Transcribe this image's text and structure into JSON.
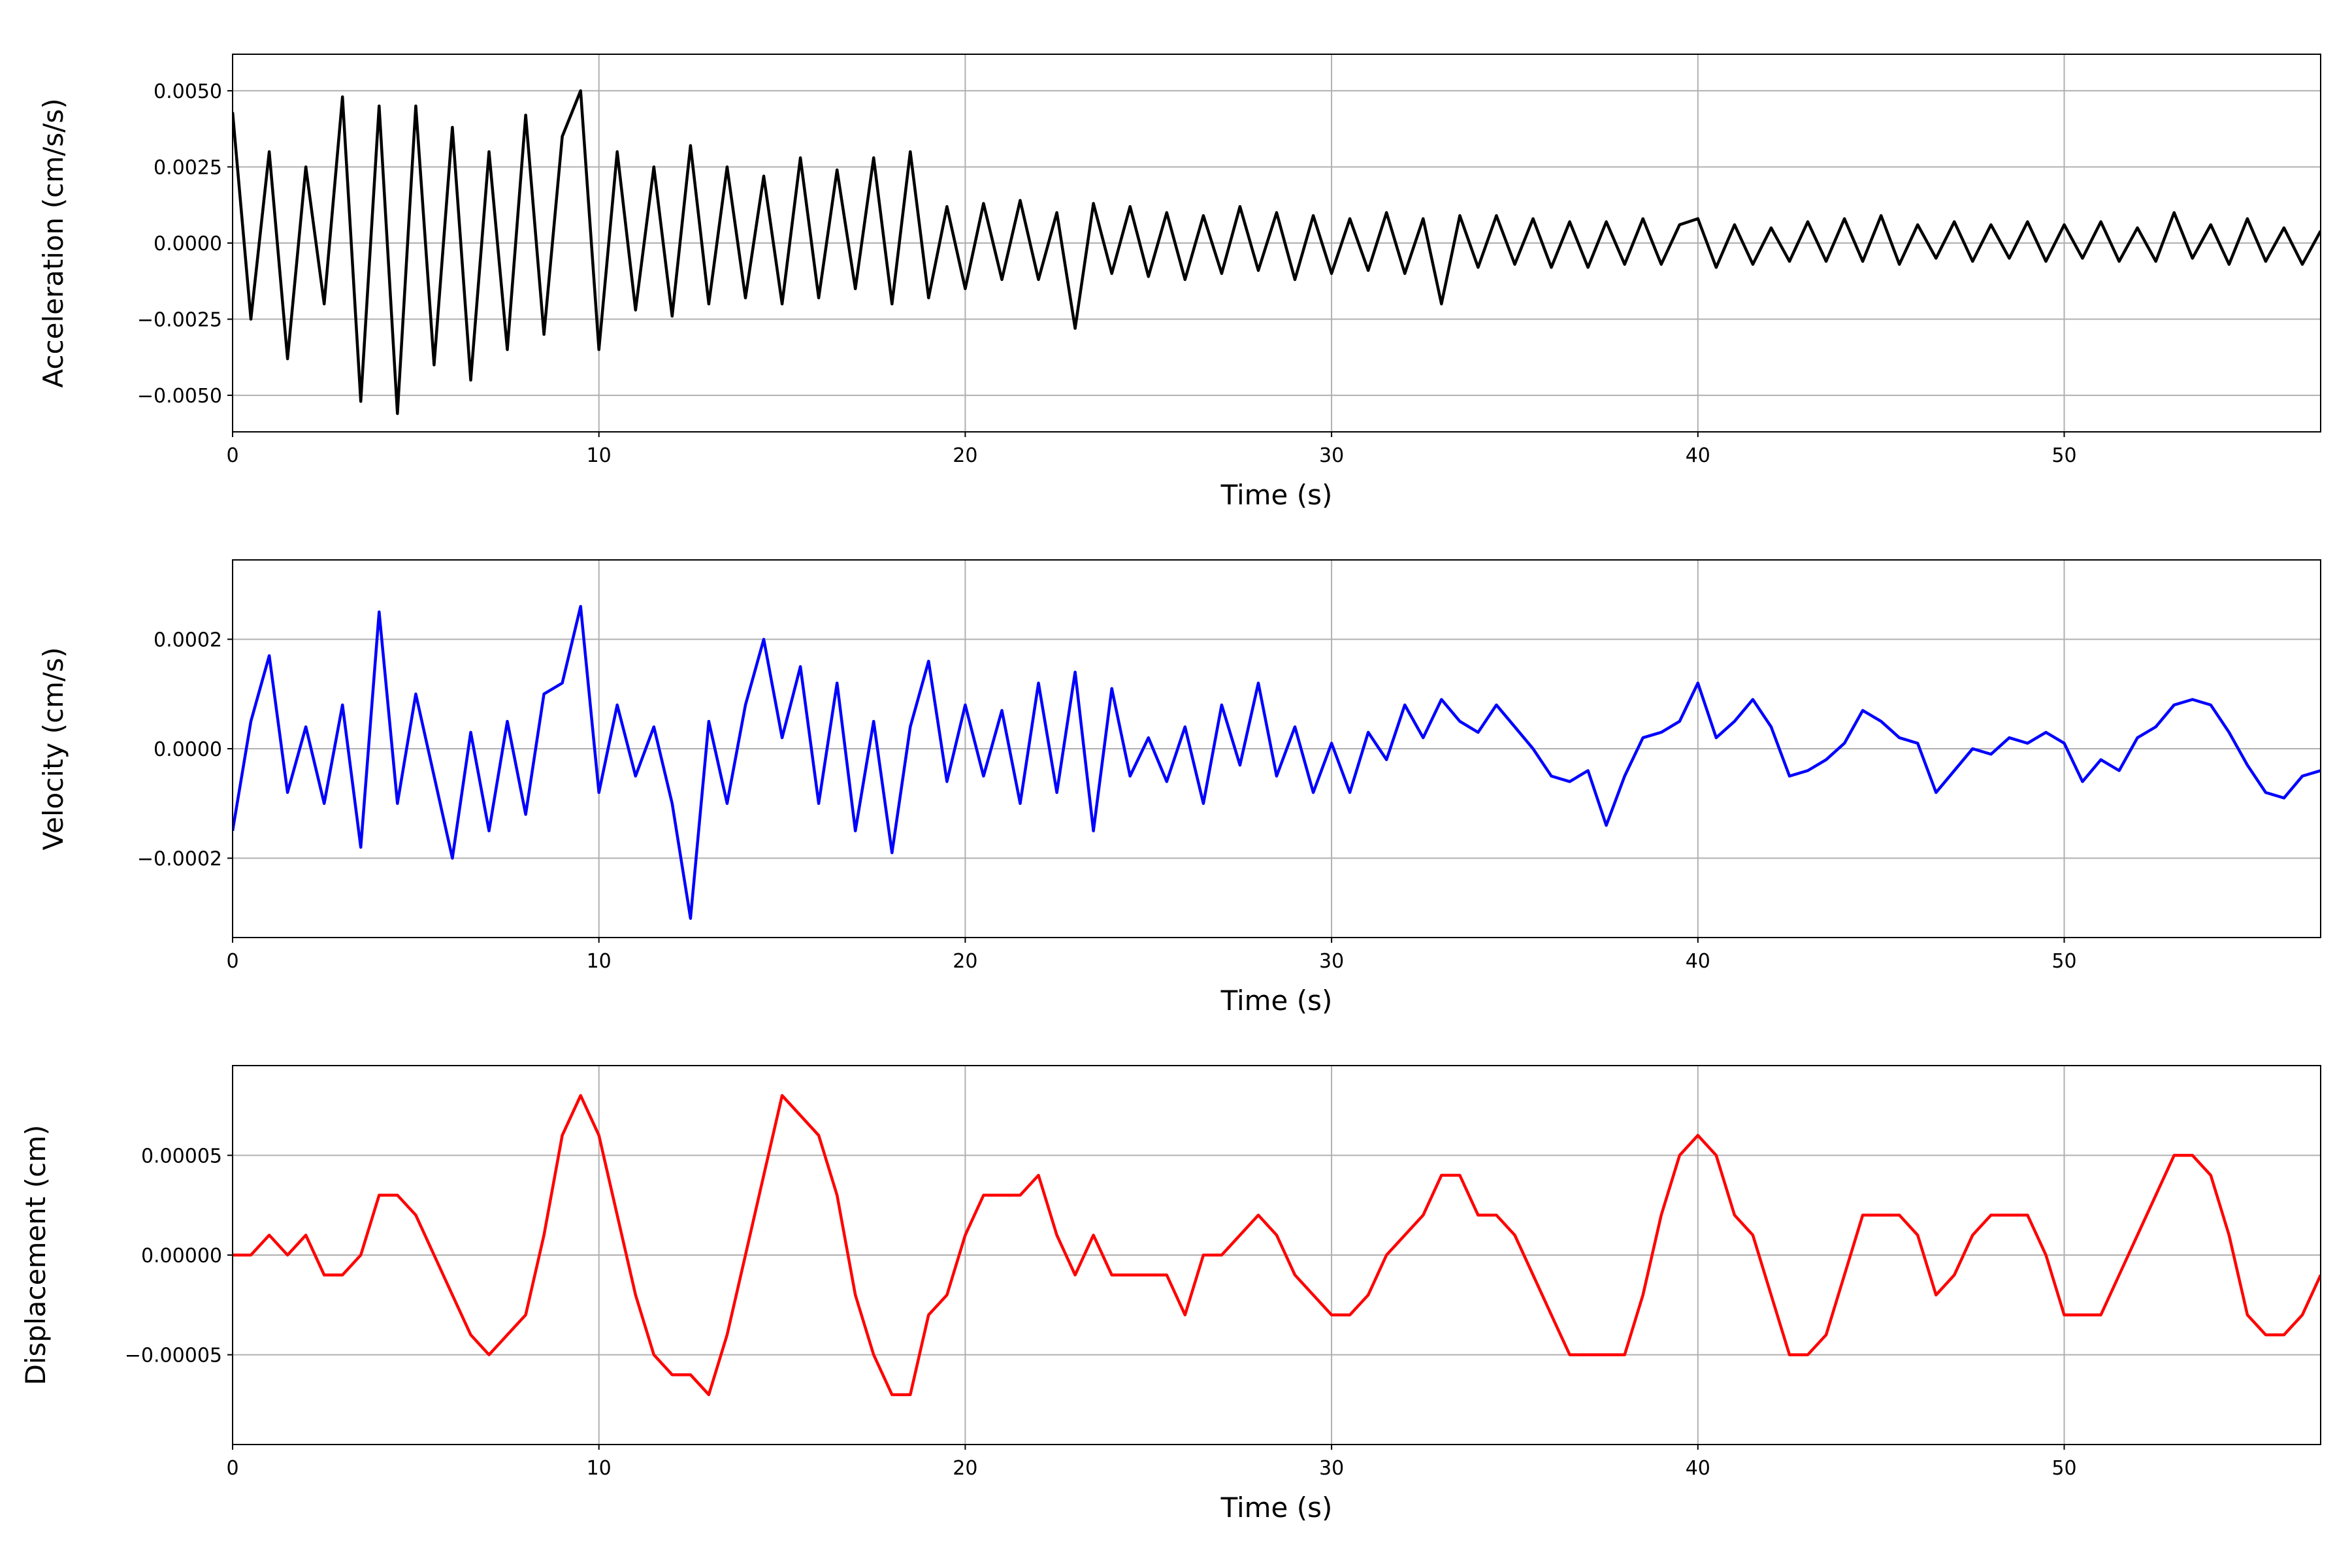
{
  "chart_data": [
    {
      "type": "line",
      "xlabel": "Time (s)",
      "ylabel": "Acceleration (cm/s/s)",
      "color": "#000000",
      "grid": true,
      "xlim": [
        0,
        57
      ],
      "xticks": [
        0,
        10,
        20,
        30,
        40,
        50
      ],
      "ylim": [
        -0.0062,
        0.0062
      ],
      "yticks": [
        {
          "value": -0.005,
          "label": "−0.0050"
        },
        {
          "value": -0.0025,
          "label": "−0.0025"
        },
        {
          "value": 0,
          "label": "0.0000"
        },
        {
          "value": 0.0025,
          "label": "0.0025"
        },
        {
          "value": 0.005,
          "label": "0.0050"
        }
      ],
      "x": [
        0,
        0.5,
        1,
        1.5,
        2,
        2.5,
        3,
        3.5,
        4,
        4.5,
        5,
        5.5,
        6,
        6.5,
        7,
        7.5,
        8,
        8.5,
        9,
        9.5,
        10,
        10.5,
        11,
        11.5,
        12,
        12.5,
        13,
        13.5,
        14,
        14.5,
        15,
        15.5,
        16,
        16.5,
        17,
        17.5,
        18,
        18.5,
        19,
        19.5,
        20,
        20.5,
        21,
        21.5,
        22,
        22.5,
        23,
        23.5,
        24,
        24.5,
        25,
        25.5,
        26,
        26.5,
        27,
        27.5,
        28,
        28.5,
        29,
        29.5,
        30,
        30.5,
        31,
        31.5,
        32,
        32.5,
        33,
        33.5,
        34,
        34.5,
        35,
        35.5,
        36,
        36.5,
        37,
        37.5,
        38,
        38.5,
        39,
        39.5,
        40,
        40.5,
        41,
        41.5,
        42,
        42.5,
        43,
        43.5,
        44,
        44.5,
        45,
        45.5,
        46,
        46.5,
        47,
        47.5,
        48,
        48.5,
        49,
        49.5,
        50,
        50.5,
        51,
        51.5,
        52,
        52.5,
        53,
        53.5,
        54,
        54.5,
        55,
        55.5,
        56,
        56.5,
        57
      ],
      "values": [
        0.0043,
        -0.0025,
        0.003,
        -0.0038,
        0.0025,
        -0.002,
        0.0048,
        -0.0052,
        0.0045,
        -0.0056,
        0.0045,
        -0.004,
        0.0038,
        -0.0045,
        0.003,
        -0.0035,
        0.0042,
        -0.003,
        0.0035,
        0.005,
        -0.0035,
        0.003,
        -0.0022,
        0.0025,
        -0.0024,
        0.0032,
        -0.002,
        0.0025,
        -0.0018,
        0.0022,
        -0.002,
        0.0028,
        -0.0018,
        0.0024,
        -0.0015,
        0.0028,
        -0.002,
        0.003,
        -0.0018,
        0.0012,
        -0.0015,
        0.0013,
        -0.0012,
        0.0014,
        -0.0012,
        0.001,
        -0.0028,
        0.0013,
        -0.001,
        0.0012,
        -0.0011,
        0.001,
        -0.0012,
        0.0009,
        -0.001,
        0.0012,
        -0.0009,
        0.001,
        -0.0012,
        0.0009,
        -0.001,
        0.0008,
        -0.0009,
        0.001,
        -0.001,
        0.0008,
        -0.002,
        0.0009,
        -0.0008,
        0.0009,
        -0.0007,
        0.0008,
        -0.0008,
        0.0007,
        -0.0008,
        0.0007,
        -0.0007,
        0.0008,
        -0.0007,
        0.0006,
        0.0008,
        -0.0008,
        0.0006,
        -0.0007,
        0.0005,
        -0.0006,
        0.0007,
        -0.0006,
        0.0008,
        -0.0006,
        0.0009,
        -0.0007,
        0.0006,
        -0.0005,
        0.0007,
        -0.0006,
        0.0006,
        -0.0005,
        0.0007,
        -0.0006,
        0.0006,
        -0.0005,
        0.0007,
        -0.0006,
        0.0005,
        -0.0006,
        0.001,
        -0.0005,
        0.0006,
        -0.0007,
        0.0008,
        -0.0006,
        0.0005,
        -0.0007,
        0.0004
      ]
    },
    {
      "type": "line",
      "xlabel": "Time (s)",
      "ylabel": "Velocity (cm/s)",
      "color": "#0000ff",
      "grid": true,
      "xlim": [
        0,
        57
      ],
      "xticks": [
        0,
        10,
        20,
        30,
        40,
        50
      ],
      "ylim": [
        -0.000345,
        0.000345
      ],
      "yticks": [
        {
          "value": -0.0002,
          "label": "−0.0002"
        },
        {
          "value": 0,
          "label": "0.0000"
        },
        {
          "value": 0.0002,
          "label": "0.0002"
        }
      ],
      "x": [
        0,
        0.5,
        1,
        1.5,
        2,
        2.5,
        3,
        3.5,
        4,
        4.5,
        5,
        5.5,
        6,
        6.5,
        7,
        7.5,
        8,
        8.5,
        9,
        9.5,
        10,
        10.5,
        11,
        11.5,
        12,
        12.5,
        13,
        13.5,
        14,
        14.5,
        15,
        15.5,
        16,
        16.5,
        17,
        17.5,
        18,
        18.5,
        19,
        19.5,
        20,
        20.5,
        21,
        21.5,
        22,
        22.5,
        23,
        23.5,
        24,
        24.5,
        25,
        25.5,
        26,
        26.5,
        27,
        27.5,
        28,
        28.5,
        29,
        29.5,
        30,
        30.5,
        31,
        31.5,
        32,
        32.5,
        33,
        33.5,
        34,
        34.5,
        35,
        35.5,
        36,
        36.5,
        37,
        37.5,
        38,
        38.5,
        39,
        39.5,
        40,
        40.5,
        41,
        41.5,
        42,
        42.5,
        43,
        43.5,
        44,
        44.5,
        45,
        45.5,
        46,
        46.5,
        47,
        47.5,
        48,
        48.5,
        49,
        49.5,
        50,
        50.5,
        51,
        51.5,
        52,
        52.5,
        53,
        53.5,
        54,
        54.5,
        55,
        55.5,
        56,
        56.5,
        57
      ],
      "values": [
        -0.00015,
        5e-05,
        0.00017,
        -8e-05,
        4e-05,
        -0.0001,
        8e-05,
        -0.00018,
        0.00025,
        -0.0001,
        0.0001,
        -5e-05,
        -0.0002,
        3e-05,
        -0.00015,
        5e-05,
        -0.00012,
        0.0001,
        0.00012,
        0.00026,
        -8e-05,
        8e-05,
        -5e-05,
        4e-05,
        -0.0001,
        -0.00031,
        5e-05,
        -0.0001,
        8e-05,
        0.0002,
        2e-05,
        0.00015,
        -0.0001,
        0.00012,
        -0.00015,
        5e-05,
        -0.00019,
        4e-05,
        0.00016,
        -6e-05,
        8e-05,
        -5e-05,
        7e-05,
        -0.0001,
        0.00012,
        -8e-05,
        0.00014,
        -0.00015,
        0.00011,
        -5e-05,
        2e-05,
        -6e-05,
        4e-05,
        -0.0001,
        8e-05,
        -3e-05,
        0.00012,
        -5e-05,
        4e-05,
        -8e-05,
        1e-05,
        -8e-05,
        3e-05,
        -2e-05,
        8e-05,
        2e-05,
        9e-05,
        5e-05,
        3e-05,
        8e-05,
        4e-05,
        0,
        -5e-05,
        -6e-05,
        -4e-05,
        -0.00014,
        -5e-05,
        2e-05,
        3e-05,
        5e-05,
        0.00012,
        2e-05,
        5e-05,
        9e-05,
        4e-05,
        -5e-05,
        -4e-05,
        -2e-05,
        1e-05,
        7e-05,
        5e-05,
        2e-05,
        1e-05,
        -8e-05,
        -4e-05,
        0,
        -1e-05,
        2e-05,
        1e-05,
        3e-05,
        1e-05,
        -6e-05,
        -2e-05,
        -4e-05,
        2e-05,
        4e-05,
        8e-05,
        9e-05,
        8e-05,
        3e-05,
        -3e-05,
        -8e-05,
        -9e-05,
        -5e-05,
        -4e-05
      ]
    },
    {
      "type": "line",
      "xlabel": "Time (s)",
      "ylabel": "Displacement (cm)",
      "color": "#ff0000",
      "grid": true,
      "xlim": [
        0,
        57
      ],
      "xticks": [
        0,
        10,
        20,
        30,
        40,
        50
      ],
      "ylim": [
        -9.5e-05,
        9.5e-05
      ],
      "yticks": [
        {
          "value": -5e-05,
          "label": "−0.00005"
        },
        {
          "value": 0,
          "label": "0.00000"
        },
        {
          "value": 5e-05,
          "label": "0.00005"
        }
      ],
      "x": [
        0,
        0.5,
        1,
        1.5,
        2,
        2.5,
        3,
        3.5,
        4,
        4.5,
        5,
        5.5,
        6,
        6.5,
        7,
        7.5,
        8,
        8.5,
        9,
        9.5,
        10,
        10.5,
        11,
        11.5,
        12,
        12.5,
        13,
        13.5,
        14,
        14.5,
        15,
        15.5,
        16,
        16.5,
        17,
        17.5,
        18,
        18.5,
        19,
        19.5,
        20,
        20.5,
        21,
        21.5,
        22,
        22.5,
        23,
        23.5,
        24,
        24.5,
        25,
        25.5,
        26,
        26.5,
        27,
        27.5,
        28,
        28.5,
        29,
        29.5,
        30,
        30.5,
        31,
        31.5,
        32,
        32.5,
        33,
        33.5,
        34,
        34.5,
        35,
        35.5,
        36,
        36.5,
        37,
        37.5,
        38,
        38.5,
        39,
        39.5,
        40,
        40.5,
        41,
        41.5,
        42,
        42.5,
        43,
        43.5,
        44,
        44.5,
        45,
        45.5,
        46,
        46.5,
        47,
        47.5,
        48,
        48.5,
        49,
        49.5,
        50,
        50.5,
        51,
        51.5,
        52,
        52.5,
        53,
        53.5,
        54,
        54.5,
        55,
        55.5,
        56,
        56.5,
        57
      ],
      "values": [
        0,
        0,
        1e-05,
        0,
        1e-05,
        -1e-05,
        -1e-05,
        0,
        3e-05,
        3e-05,
        2e-05,
        0,
        -2e-05,
        -4e-05,
        -5e-05,
        -4e-05,
        -3e-05,
        1e-05,
        6e-05,
        8e-05,
        6e-05,
        2e-05,
        -2e-05,
        -5e-05,
        -6e-05,
        -6e-05,
        -7e-05,
        -4e-05,
        0,
        4e-05,
        8e-05,
        7e-05,
        6e-05,
        3e-05,
        -2e-05,
        -5e-05,
        -7e-05,
        -7e-05,
        -3e-05,
        -2e-05,
        1e-05,
        3e-05,
        3e-05,
        3e-05,
        4e-05,
        1e-05,
        -1e-05,
        1e-05,
        -1e-05,
        -1e-05,
        -1e-05,
        -1e-05,
        -3e-05,
        0,
        0,
        1e-05,
        2e-05,
        1e-05,
        -1e-05,
        -2e-05,
        -3e-05,
        -3e-05,
        -2e-05,
        0,
        1e-05,
        2e-05,
        4e-05,
        4e-05,
        2e-05,
        2e-05,
        1e-05,
        -1e-05,
        -3e-05,
        -5e-05,
        -5e-05,
        -5e-05,
        -5e-05,
        -2e-05,
        2e-05,
        5e-05,
        6e-05,
        5e-05,
        2e-05,
        1e-05,
        -2e-05,
        -5e-05,
        -5e-05,
        -4e-05,
        -1e-05,
        2e-05,
        2e-05,
        2e-05,
        1e-05,
        -2e-05,
        -1e-05,
        1e-05,
        2e-05,
        2e-05,
        2e-05,
        0,
        -3e-05,
        -3e-05,
        -3e-05,
        -1e-05,
        1e-05,
        3e-05,
        5e-05,
        5e-05,
        4e-05,
        1e-05,
        -3e-05,
        -4e-05,
        -4e-05,
        -3e-05,
        -1e-05
      ]
    }
  ]
}
